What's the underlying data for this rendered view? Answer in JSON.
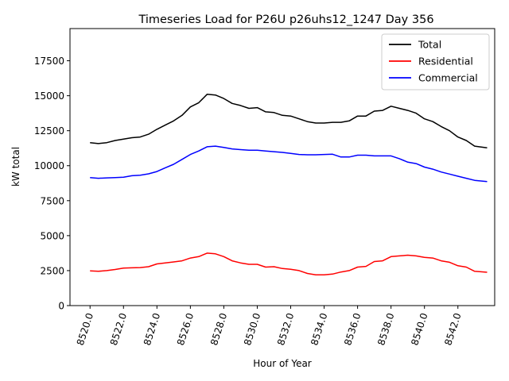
{
  "chart_data": {
    "type": "line",
    "title": "Timeseries Load for P26U p26uhs12_1247  Day 356",
    "xlabel": "Hour of Year",
    "ylabel": "kW total",
    "xlim": [
      8518.8,
      8544.2
    ],
    "ylim": [
      0,
      19800
    ],
    "xticks": [
      8520,
      8522,
      8524,
      8526,
      8528,
      8530,
      8532,
      8534,
      8536,
      8538,
      8540,
      8542
    ],
    "xtick_labels": [
      "8520.0",
      "8522.0",
      "8524.0",
      "8526.0",
      "8528.0",
      "8530.0",
      "8532.0",
      "8534.0",
      "8536.0",
      "8538.0",
      "8540.0",
      "8542.0"
    ],
    "yticks": [
      0,
      2500,
      5000,
      7500,
      10000,
      12500,
      15000,
      17500
    ],
    "ytick_labels": [
      "0",
      "2500",
      "5000",
      "7500",
      "10000",
      "12500",
      "15000",
      "17500"
    ],
    "grid": false,
    "legend_position": "upper right",
    "x": [
      8520.0,
      8520.5,
      8521.0,
      8521.5,
      8522.0,
      8522.5,
      8523.0,
      8523.5,
      8524.0,
      8524.5,
      8525.0,
      8525.5,
      8526.0,
      8526.5,
      8527.0,
      8527.5,
      8528.0,
      8528.5,
      8529.0,
      8529.5,
      8530.0,
      8530.5,
      8531.0,
      8531.5,
      8532.0,
      8532.5,
      8533.0,
      8533.5,
      8534.0,
      8534.5,
      8535.0,
      8535.5,
      8536.0,
      8536.5,
      8537.0,
      8537.5,
      8538.0,
      8538.5,
      8539.0,
      8539.5,
      8540.0,
      8540.5,
      8541.0,
      8541.5,
      8542.0,
      8542.5,
      8543.0,
      8543.75
    ],
    "series": [
      {
        "name": "Total",
        "color": "#000000",
        "values": [
          11650,
          11580,
          11650,
          11800,
          11900,
          12000,
          12050,
          12250,
          12600,
          12900,
          13200,
          13600,
          14200,
          14500,
          15100,
          15050,
          14800,
          14450,
          14300,
          14100,
          14150,
          13850,
          13800,
          13600,
          13550,
          13350,
          13150,
          13050,
          13050,
          13100,
          13100,
          13200,
          13550,
          13550,
          13900,
          13950,
          14250,
          14100,
          13950,
          13750,
          13350,
          13150,
          12800,
          12500,
          12050,
          11800,
          11400,
          11280
        ]
      },
      {
        "name": "Residential",
        "color": "#ff0000",
        "values": [
          2480,
          2450,
          2500,
          2580,
          2680,
          2700,
          2720,
          2780,
          2980,
          3050,
          3120,
          3200,
          3400,
          3500,
          3750,
          3700,
          3500,
          3200,
          3050,
          2950,
          2950,
          2750,
          2780,
          2650,
          2600,
          2500,
          2300,
          2200,
          2200,
          2250,
          2400,
          2500,
          2750,
          2800,
          3150,
          3200,
          3500,
          3550,
          3600,
          3550,
          3450,
          3400,
          3200,
          3100,
          2850,
          2750,
          2450,
          2380
        ]
      },
      {
        "name": "Commercial",
        "color": "#0000ff",
        "values": [
          9150,
          9100,
          9130,
          9150,
          9180,
          9280,
          9320,
          9420,
          9580,
          9850,
          10100,
          10450,
          10800,
          11050,
          11350,
          11400,
          11300,
          11200,
          11150,
          11100,
          11100,
          11050,
          11000,
          10950,
          10880,
          10800,
          10780,
          10780,
          10800,
          10820,
          10620,
          10620,
          10750,
          10750,
          10700,
          10700,
          10700,
          10500,
          10250,
          10150,
          9900,
          9750,
          9550,
          9400,
          9250,
          9100,
          8950,
          8860
        ]
      }
    ]
  }
}
